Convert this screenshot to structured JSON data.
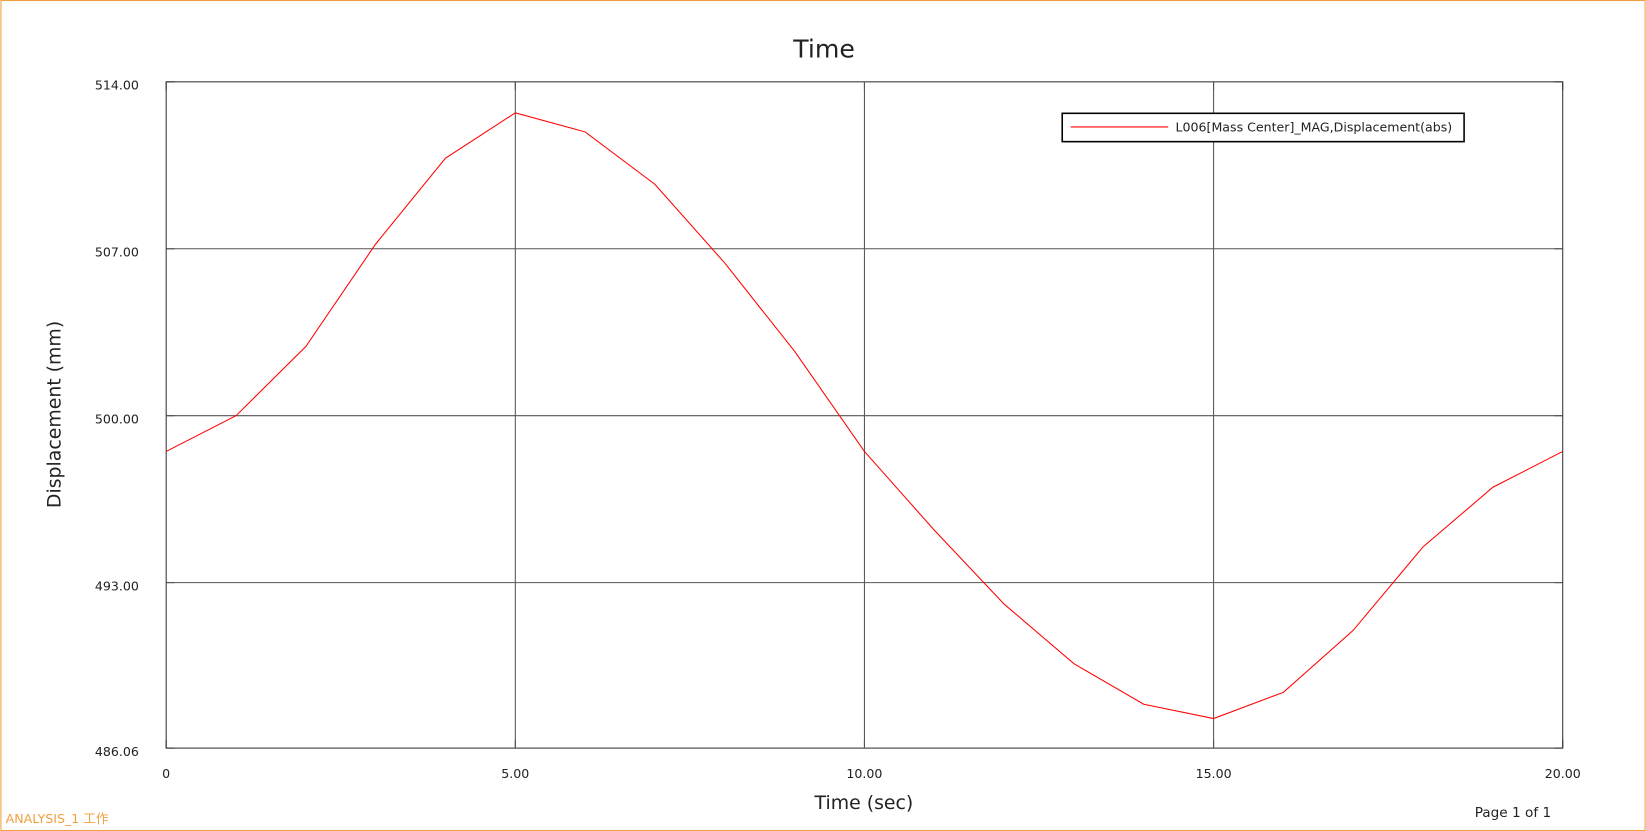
{
  "chart_data": {
    "type": "line",
    "title": "Time",
    "x_label": "Time (sec)",
    "y_label": "Displacement (mm)",
    "x": [
      0,
      1,
      2,
      3,
      4,
      5,
      6,
      7,
      8,
      9,
      10,
      11,
      12,
      13,
      14,
      15,
      16,
      17,
      18,
      19,
      20
    ],
    "series": [
      {
        "name": "L006[Mass Center]_MAG,Displacement(abs)",
        "color": "#ff0000",
        "values": [
          498.5,
          500.0,
          502.9,
          507.2,
          510.8,
          512.7,
          511.9,
          509.7,
          506.4,
          502.7,
          498.5,
          495.2,
          492.1,
          489.6,
          487.9,
          487.3,
          488.4,
          491.0,
          494.5,
          497.0,
          498.5
        ]
      }
    ],
    "xlim": [
      0,
      20
    ],
    "xticks": [
      0,
      {
        "value": 5,
        "label": "5.00"
      },
      {
        "value": 10,
        "label": "10.00"
      },
      {
        "value": 15,
        "label": "15.00"
      },
      {
        "value": 20,
        "label": "20.00"
      }
    ],
    "ylim": [
      486.06,
      514
    ],
    "yticks": [
      {
        "value": 486.06,
        "label": "486.06"
      },
      {
        "value": 493,
        "label": "493.00"
      },
      {
        "value": 500,
        "label": "500.00"
      },
      {
        "value": 507,
        "label": "507.00"
      },
      {
        "value": 514,
        "label": "514.00"
      }
    ],
    "grid": true,
    "legend": "upper right",
    "footer_left": "ANALYSIS_1 工作",
    "footer_right": "Page 1 of 1"
  }
}
